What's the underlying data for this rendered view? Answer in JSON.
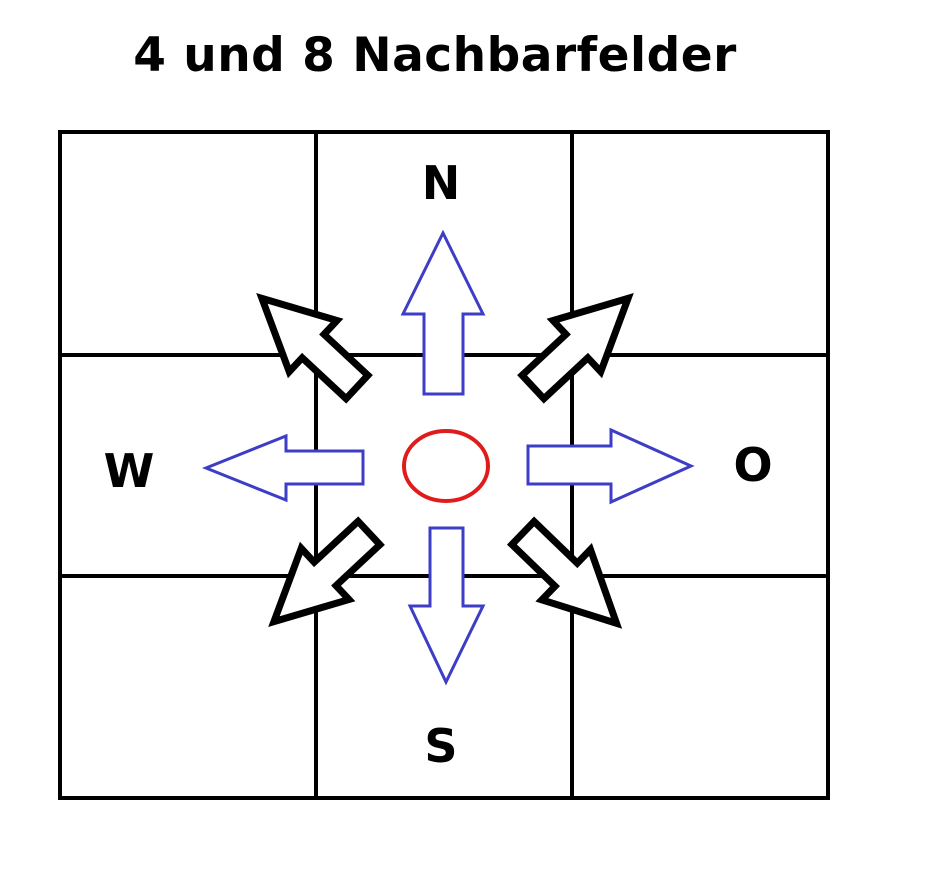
{
  "title": "4 und 8 Nachbarfelder",
  "directions": {
    "north": "N",
    "west": "W",
    "east": "O",
    "south": "S"
  },
  "colors": {
    "grid": "#000000",
    "orthogonal_arrows": "#3d3dc6",
    "diagonal_arrows": "#000000",
    "center_cell": "#e01b1b"
  }
}
